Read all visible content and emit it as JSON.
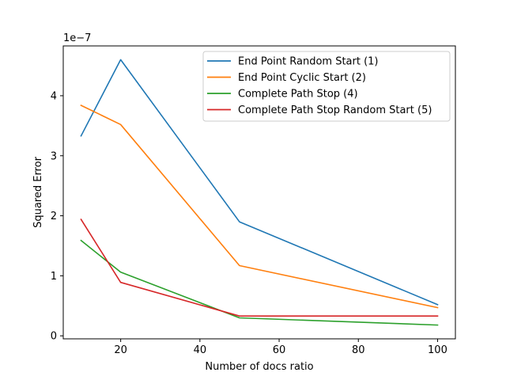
{
  "chart_data": {
    "type": "line",
    "title": "",
    "xlabel": "Number of docs ratio",
    "ylabel": "Squared Error",
    "y_scale_label": "1e−7",
    "x": [
      10,
      20,
      50,
      100
    ],
    "xlim": [
      5.5,
      104.5
    ],
    "ylim": [
      -0.05,
      4.83
    ],
    "xticks": [
      20,
      40,
      60,
      80,
      100
    ],
    "yticks": [
      0,
      1,
      2,
      3,
      4
    ],
    "grid": false,
    "legend_position": "top-right",
    "series": [
      {
        "name": "End Point Random Start (1)",
        "color": "#1f77b4",
        "values": [
          3.33,
          4.6,
          1.9,
          0.52
        ]
      },
      {
        "name": "End Point Cyclic Start (2)",
        "color": "#ff7f0e",
        "values": [
          3.84,
          3.52,
          1.17,
          0.47
        ]
      },
      {
        "name": "Complete Path Stop (4)",
        "color": "#2ca02c",
        "values": [
          1.59,
          1.06,
          0.3,
          0.18
        ]
      },
      {
        "name": "Complete Path Stop Random Start (5)",
        "color": "#d62728",
        "values": [
          1.94,
          0.89,
          0.33,
          0.33
        ]
      }
    ]
  }
}
